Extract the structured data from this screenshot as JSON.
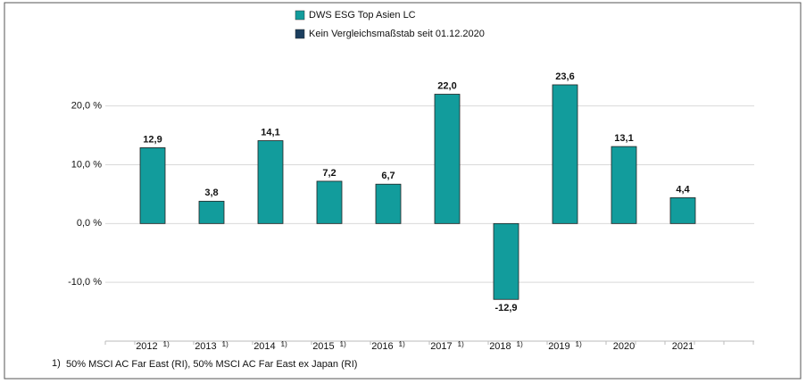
{
  "chart_data": {
    "type": "bar",
    "categories": [
      "2012",
      "2013",
      "2014",
      "2015",
      "2016",
      "2017",
      "2018",
      "2019",
      "2020",
      "2021"
    ],
    "category_notes": [
      "1)",
      "1)",
      "1)",
      "1)",
      "1)",
      "1)",
      "1)",
      "1)",
      null,
      null
    ],
    "series": [
      {
        "name": "DWS ESG Top Asien  LC",
        "color": "#129c9c",
        "values": [
          12.9,
          3.8,
          14.1,
          7.2,
          6.7,
          22.0,
          -12.9,
          23.6,
          13.1,
          4.4
        ],
        "value_labels": [
          "12,9",
          "3,8",
          "14,1",
          "7,2",
          "6,7",
          "22,0",
          "-12,9",
          "23,6",
          "13,1",
          "4,4"
        ]
      }
    ],
    "benchmark": {
      "name": "Kein Vergleichsmaßstab seit 01.12.2020",
      "color": "#1b3e5e"
    },
    "ylim": [
      -20,
      28
    ],
    "yticks": [
      {
        "value": 20,
        "label": "20,0 %"
      },
      {
        "value": 10,
        "label": "10,0 %"
      },
      {
        "value": 0,
        "label": "0,0 %"
      },
      {
        "value": -10,
        "label": "-10,0 %"
      }
    ],
    "grid": true,
    "footnote": {
      "marker": "1)",
      "text": "50% MSCI AC Far East (RI), 50% MSCI AC Far East ex Japan (RI)"
    }
  }
}
